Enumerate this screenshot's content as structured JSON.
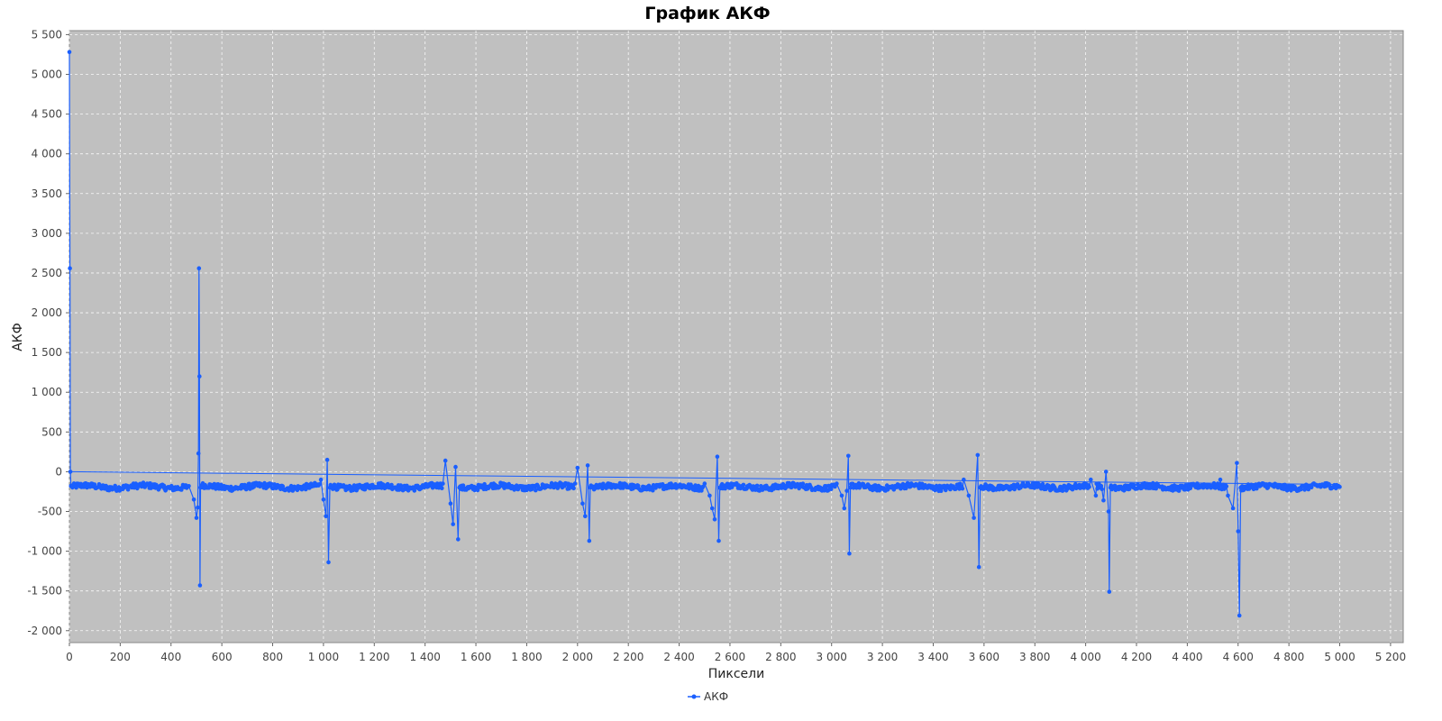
{
  "chart_data": {
    "type": "line",
    "title": "График АКФ",
    "xlabel": "Пиксели",
    "ylabel": "АКФ",
    "xlim": [
      0,
      5250
    ],
    "ylim": [
      -2150,
      5550
    ],
    "x_ticks": [
      0,
      200,
      400,
      600,
      800,
      1000,
      1200,
      1400,
      1600,
      1800,
      2000,
      2200,
      2400,
      2600,
      2800,
      3000,
      3200,
      3400,
      3600,
      3800,
      4000,
      4200,
      4400,
      4600,
      4800,
      5000,
      5200
    ],
    "x_tick_labels": [
      "0",
      "200",
      "400",
      "600",
      "800",
      "1 000",
      "1 200",
      "1 400",
      "1 600",
      "1 800",
      "2 000",
      "2 200",
      "2 400",
      "2 600",
      "2 800",
      "3 000",
      "3 200",
      "3 400",
      "3 600",
      "3 800",
      "4 000",
      "4 200",
      "4 400",
      "4 600",
      "4 800",
      "5 000",
      "5 200"
    ],
    "y_ticks": [
      -2000,
      -1500,
      -1000,
      -500,
      0,
      500,
      1000,
      1500,
      2000,
      2500,
      3000,
      3500,
      4000,
      4500,
      5000,
      5500
    ],
    "y_tick_labels": [
      "-2 000",
      "-1 500",
      "-1 000",
      "-500",
      "0",
      "500",
      "1 000",
      "1 500",
      "2 000",
      "2 500",
      "3 000",
      "3 500",
      "4 000",
      "4 500",
      "5 000",
      "5 500"
    ],
    "grid": true,
    "legend": "bottom-center",
    "series": [
      {
        "name": "АКФ",
        "color": "#1a5fff",
        "baseline": -190,
        "points": [
          [
            0,
            5280
          ],
          [
            2,
            2560
          ],
          [
            4,
            0
          ],
          [
            6,
            -180
          ],
          [
            470,
            -180
          ],
          [
            490,
            -350
          ],
          [
            500,
            -580
          ],
          [
            505,
            -450
          ],
          [
            508,
            230
          ],
          [
            510,
            2560
          ],
          [
            512,
            1200
          ],
          [
            514,
            -1430
          ],
          [
            516,
            -200
          ],
          [
            960,
            -180
          ],
          [
            990,
            -100
          ],
          [
            1000,
            -350
          ],
          [
            1010,
            -560
          ],
          [
            1015,
            150
          ],
          [
            1020,
            -1140
          ],
          [
            1025,
            -200
          ],
          [
            1470,
            -150
          ],
          [
            1480,
            140
          ],
          [
            1500,
            -400
          ],
          [
            1510,
            -660
          ],
          [
            1520,
            60
          ],
          [
            1530,
            -850
          ],
          [
            1535,
            -200
          ],
          [
            1990,
            -150
          ],
          [
            2000,
            50
          ],
          [
            2020,
            -400
          ],
          [
            2030,
            -560
          ],
          [
            2040,
            80
          ],
          [
            2046,
            -870
          ],
          [
            2050,
            -200
          ],
          [
            2500,
            -150
          ],
          [
            2520,
            -300
          ],
          [
            2530,
            -460
          ],
          [
            2540,
            -600
          ],
          [
            2550,
            190
          ],
          [
            2556,
            -870
          ],
          [
            2560,
            -200
          ],
          [
            3020,
            -150
          ],
          [
            3040,
            -300
          ],
          [
            3050,
            -460
          ],
          [
            3060,
            -240
          ],
          [
            3066,
            200
          ],
          [
            3070,
            -1030
          ],
          [
            3074,
            -200
          ],
          [
            3520,
            -100
          ],
          [
            3540,
            -300
          ],
          [
            3560,
            -580
          ],
          [
            3575,
            210
          ],
          [
            3580,
            -1200
          ],
          [
            3585,
            -200
          ],
          [
            4020,
            -100
          ],
          [
            4040,
            -300
          ],
          [
            4070,
            -360
          ],
          [
            4080,
            0
          ],
          [
            4090,
            -500
          ],
          [
            4093,
            -1510
          ],
          [
            4097,
            -200
          ],
          [
            4530,
            -100
          ],
          [
            4560,
            -300
          ],
          [
            4580,
            -460
          ],
          [
            4595,
            110
          ],
          [
            4600,
            -750
          ],
          [
            4605,
            -1810
          ],
          [
            4610,
            -200
          ],
          [
            5000,
            -190
          ]
        ]
      }
    ]
  }
}
